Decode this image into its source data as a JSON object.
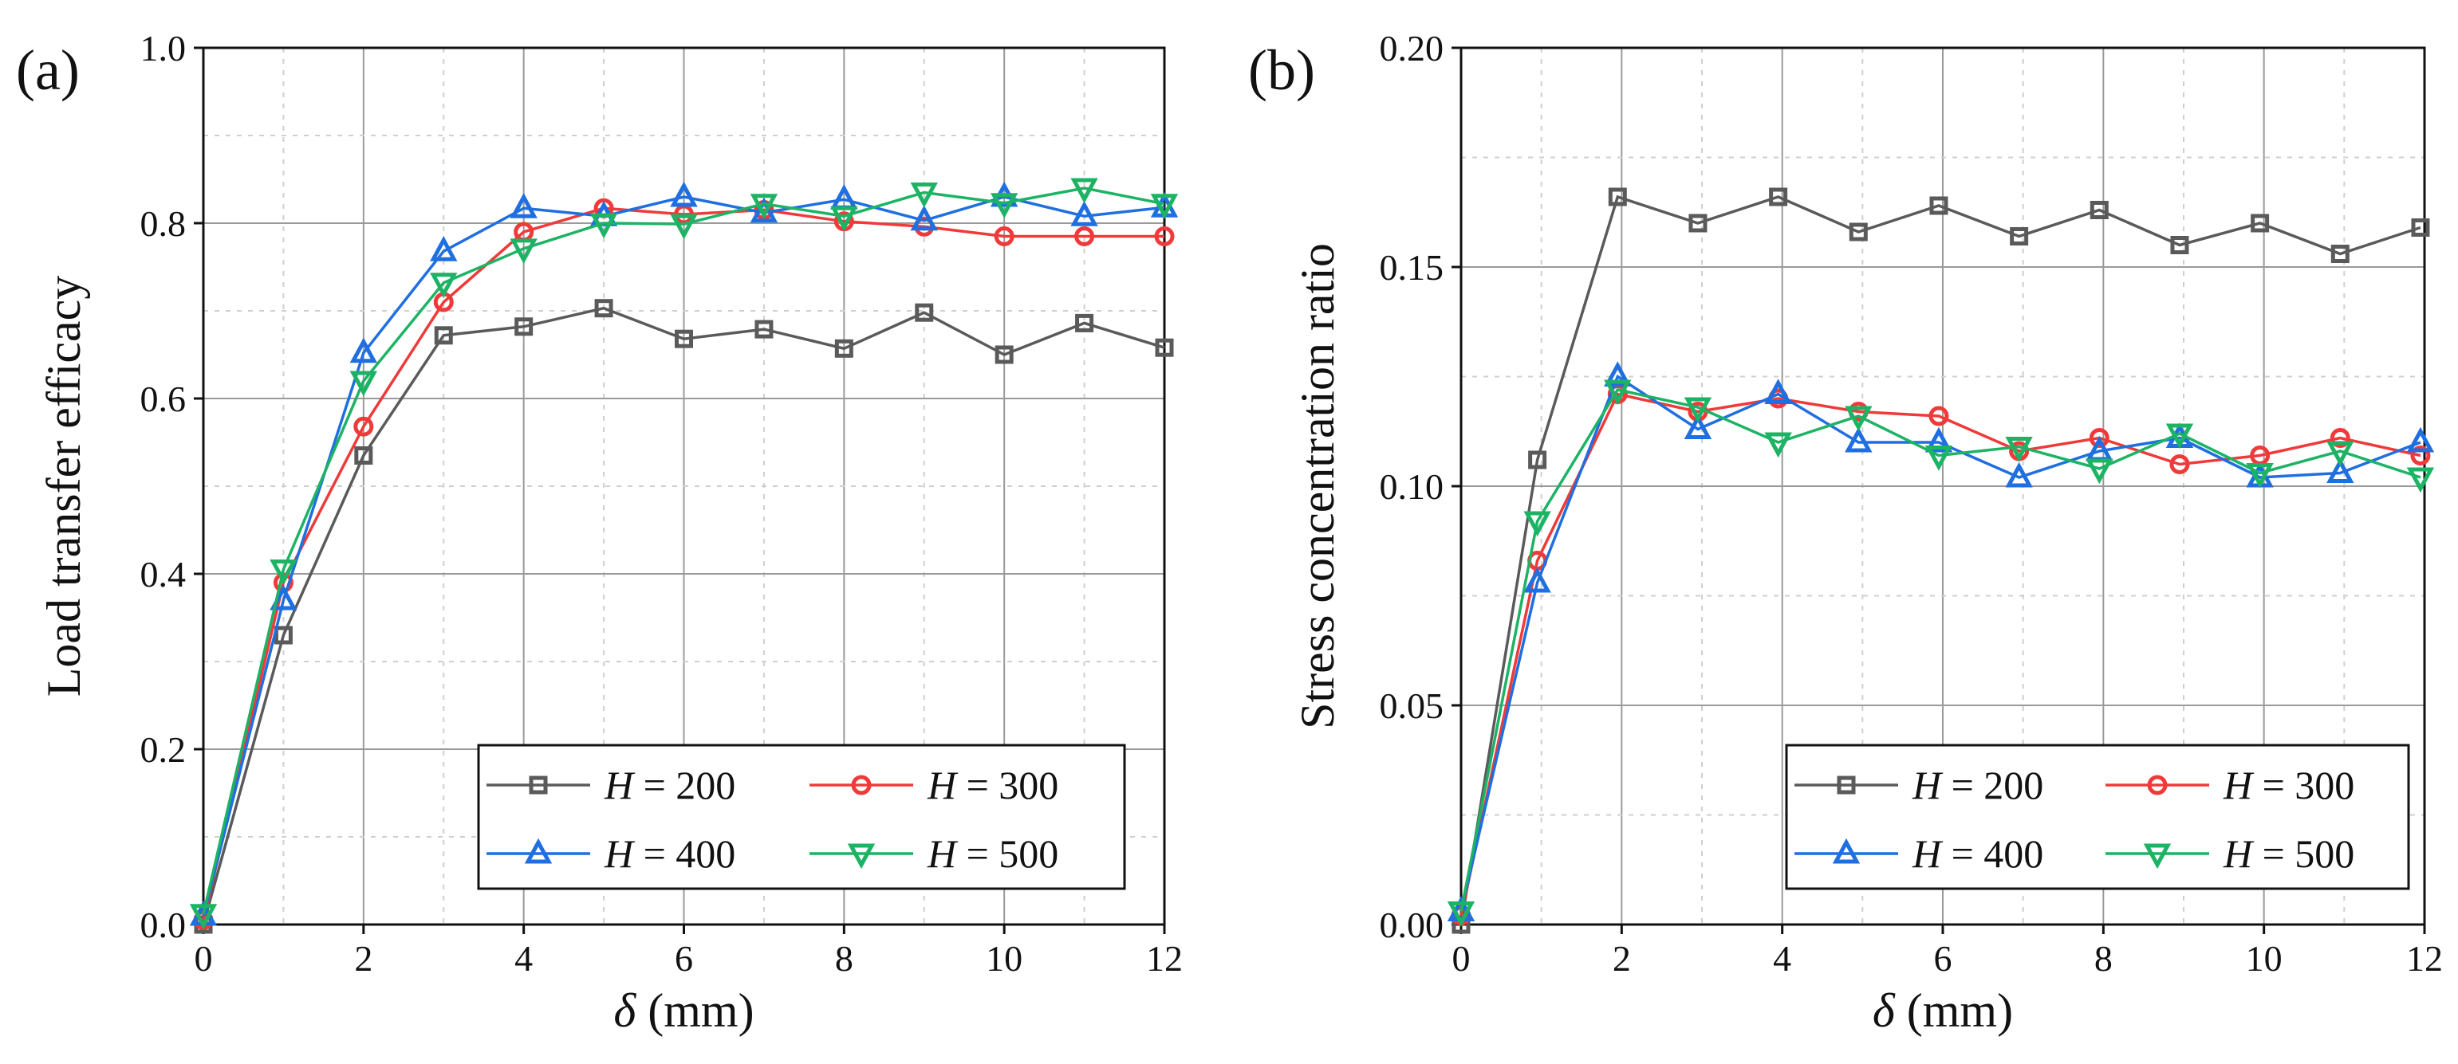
{
  "chart_data": [
    {
      "type": "line",
      "panel_label": "(a)",
      "xlabel_symbol": "δ",
      "xlabel_unit": " (mm)",
      "ylabel": "Load transfer efficacy",
      "xlim": [
        0,
        12
      ],
      "ylim": [
        0,
        1.0
      ],
      "xticks": [
        "0",
        "2",
        "4",
        "6",
        "8",
        "10",
        "12"
      ],
      "yticks": [
        "0.0",
        "0.2",
        "0.4",
        "0.6",
        "0.8",
        "1.0"
      ],
      "grid": true,
      "legend_placement": "bottom-right",
      "x": [
        0,
        1,
        2,
        3,
        4,
        5,
        6,
        7,
        8,
        9,
        10,
        11,
        12
      ],
      "series": [
        {
          "name_var": "H",
          "name_value": " = 200",
          "marker": "square",
          "color": "#5a5a5a",
          "values": [
            0.0,
            0.33,
            0.535,
            0.672,
            0.682,
            0.703,
            0.668,
            0.679,
            0.657,
            0.698,
            0.65,
            0.686,
            0.658
          ]
        },
        {
          "name_var": "H",
          "name_value": " = 300",
          "marker": "circle",
          "color": "#f03a3a",
          "values": [
            0.005,
            0.39,
            0.568,
            0.71,
            0.79,
            0.817,
            0.81,
            0.815,
            0.802,
            0.796,
            0.785,
            0.785,
            0.785
          ]
        },
        {
          "name_var": "H",
          "name_value": " = 400",
          "marker": "triangle-up",
          "color": "#1f6fe0",
          "values": [
            0.01,
            0.37,
            0.652,
            0.768,
            0.817,
            0.808,
            0.83,
            0.812,
            0.827,
            0.803,
            0.83,
            0.808,
            0.818
          ]
        },
        {
          "name_var": "H",
          "name_value": " = 500",
          "marker": "triangle-down",
          "color": "#1db365",
          "values": [
            0.012,
            0.405,
            0.62,
            0.732,
            0.771,
            0.8,
            0.799,
            0.822,
            0.808,
            0.835,
            0.823,
            0.84,
            0.822
          ]
        }
      ]
    },
    {
      "type": "line",
      "panel_label": "(b)",
      "xlabel_symbol": "δ",
      "xlabel_unit": " (mm)",
      "ylabel": "Stress concentration ratio",
      "xlim": [
        0,
        12
      ],
      "ylim": [
        0,
        0.2
      ],
      "xticks": [
        "0",
        "2",
        "4",
        "6",
        "8",
        "10",
        "12"
      ],
      "yticks": [
        "0.00",
        "0.05",
        "0.10",
        "0.15",
        "0.20"
      ],
      "grid": true,
      "legend_placement": "bottom-right",
      "x": [
        0,
        0.95,
        1.95,
        2.95,
        3.95,
        4.95,
        5.95,
        6.95,
        7.95,
        8.95,
        9.95,
        10.95,
        11.95
      ],
      "series": [
        {
          "name_var": "H",
          "name_value": " = 200",
          "marker": "square",
          "color": "#5a5a5a",
          "values": [
            0.0,
            0.106,
            0.166,
            0.16,
            0.166,
            0.158,
            0.164,
            0.157,
            0.163,
            0.155,
            0.16,
            0.153,
            0.159
          ]
        },
        {
          "name_var": "H",
          "name_value": " = 300",
          "marker": "circle",
          "color": "#f03a3a",
          "values": [
            0.002,
            0.083,
            0.121,
            0.117,
            0.12,
            0.117,
            0.116,
            0.108,
            0.111,
            0.105,
            0.107,
            0.111,
            0.107
          ]
        },
        {
          "name_var": "H",
          "name_value": " = 400",
          "marker": "triangle-up",
          "color": "#1f6fe0",
          "values": [
            0.003,
            0.078,
            0.125,
            0.113,
            0.121,
            0.11,
            0.11,
            0.102,
            0.108,
            0.111,
            0.102,
            0.103,
            0.11
          ]
        },
        {
          "name_var": "H",
          "name_value": " = 500",
          "marker": "triangle-down",
          "color": "#1db365",
          "values": [
            0.003,
            0.092,
            0.122,
            0.118,
            0.11,
            0.116,
            0.107,
            0.109,
            0.104,
            0.112,
            0.103,
            0.108,
            0.102
          ]
        }
      ]
    }
  ]
}
